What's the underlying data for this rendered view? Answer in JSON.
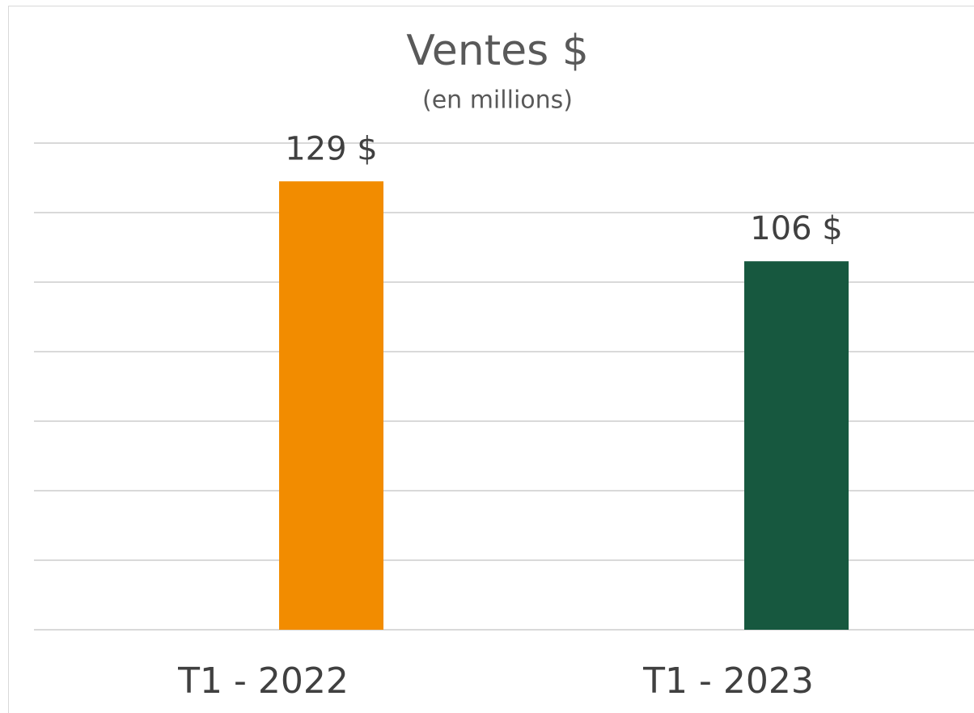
{
  "chart_data": {
    "type": "bar",
    "title": "Ventes $",
    "subtitle": "(en millions)",
    "categories": [
      "T1 - 2022",
      "T1 - 2023"
    ],
    "values": [
      129,
      106
    ],
    "value_labels": [
      "129 $",
      "106 $"
    ],
    "colors": [
      "#f28c00",
      "#17583f"
    ],
    "ylim": [
      0,
      140
    ],
    "yticks": [
      0,
      20,
      40,
      60,
      80,
      100,
      120,
      140
    ],
    "grid": true
  }
}
